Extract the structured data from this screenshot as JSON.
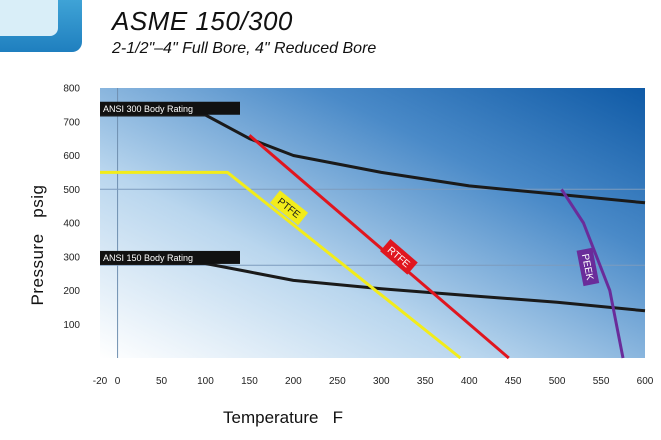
{
  "chart_data": {
    "type": "line",
    "title": "ASME 150/300",
    "subtitle": "2-1/2\"–4\" Full Bore, 4\" Reduced Bore",
    "xlabel": "Temperature   F",
    "ylabel": "Pressure   psig",
    "xlim": [
      -20,
      600
    ],
    "ylim": [
      0,
      800
    ],
    "x_ticks": [
      {
        "v": -20,
        "label": "-20"
      },
      {
        "v": 0,
        "label": "0"
      },
      {
        "v": 50,
        "label": "50"
      },
      {
        "v": 100,
        "label": "100"
      },
      {
        "v": 150,
        "label": "150"
      },
      {
        "v": 200,
        "label": "200"
      },
      {
        "v": 250,
        "label": "250"
      },
      {
        "v": 300,
        "label": "300"
      },
      {
        "v": 350,
        "label": "350"
      },
      {
        "v": 400,
        "label": "400"
      },
      {
        "v": 450,
        "label": "450"
      },
      {
        "v": 500,
        "label": "500"
      },
      {
        "v": 550,
        "label": "550"
      },
      {
        "v": 600,
        "label": "600"
      }
    ],
    "y_ticks": [
      {
        "v": 100,
        "label": "100"
      },
      {
        "v": 200,
        "label": "200"
      },
      {
        "v": 300,
        "label": "300"
      },
      {
        "v": 400,
        "label": "400"
      },
      {
        "v": 500,
        "label": "500"
      },
      {
        "v": 600,
        "label": "600"
      },
      {
        "v": 700,
        "label": "700"
      },
      {
        "v": 800,
        "label": "800"
      }
    ],
    "grid": {
      "x": [
        0
      ],
      "y": [
        275,
        500
      ]
    },
    "series": [
      {
        "name": "ANSI 300 Body Rating",
        "color": "#1a1a1a",
        "label_style": "box",
        "label_at": [
          -20,
          740
        ],
        "points": [
          [
            -20,
            720
          ],
          [
            100,
            720
          ],
          [
            150,
            650
          ],
          [
            200,
            600
          ],
          [
            300,
            550
          ],
          [
            400,
            510
          ],
          [
            500,
            485
          ],
          [
            600,
            460
          ]
        ]
      },
      {
        "name": "ANSI 150 Body Rating",
        "color": "#1a1a1a",
        "label_style": "box",
        "label_at": [
          -20,
          298
        ],
        "points": [
          [
            -20,
            280
          ],
          [
            100,
            280
          ],
          [
            150,
            255
          ],
          [
            200,
            230
          ],
          [
            300,
            205
          ],
          [
            400,
            185
          ],
          [
            500,
            165
          ],
          [
            600,
            140
          ]
        ]
      },
      {
        "name": "PTFE",
        "color": "#f2ec1a",
        "label_style": "tag",
        "label_text_color": "#1a1a1a",
        "label_at": [
          195,
          445
        ],
        "points": [
          [
            -20,
            550
          ],
          [
            125,
            550
          ],
          [
            390,
            0
          ]
        ]
      },
      {
        "name": "RTFE",
        "color": "#e0161f",
        "label_style": "tag",
        "label_text_color": "#ffffff",
        "label_at": [
          320,
          300
        ],
        "points": [
          [
            150,
            660
          ],
          [
            445,
            0
          ]
        ]
      },
      {
        "name": "PEEK",
        "color": "#6a2c9a",
        "label_style": "tag",
        "label_text_color": "#ffffff",
        "label_at": [
          535,
          270
        ],
        "points": [
          [
            505,
            500
          ],
          [
            530,
            400
          ],
          [
            560,
            200
          ],
          [
            575,
            0
          ]
        ]
      }
    ]
  }
}
